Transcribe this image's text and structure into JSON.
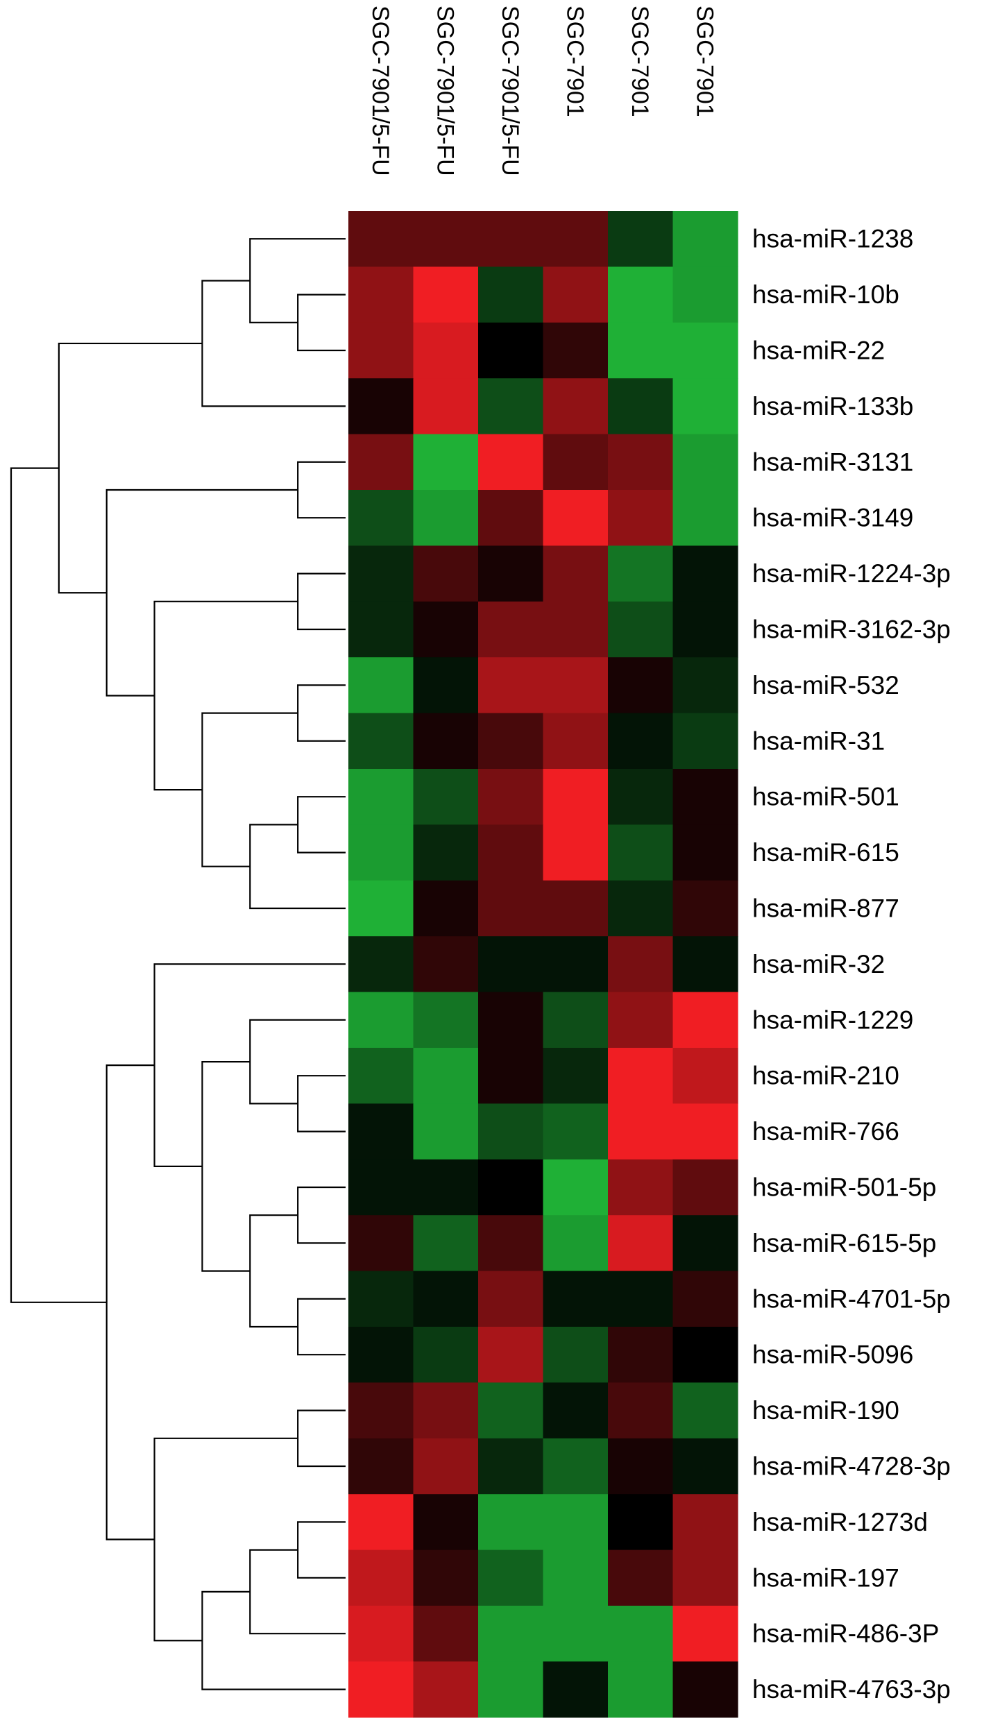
{
  "chart_data": {
    "type": "heatmap",
    "title": "",
    "columns": [
      "SGC-7901/5-FU",
      "SGC-7901/5-FU",
      "SGC-7901/5-FU",
      "SGC-7901",
      "SGC-7901",
      "SGC-7901"
    ],
    "rows": [
      "hsa-miR-1238",
      "hsa-miR-10b",
      "hsa-miR-22",
      "hsa-miR-133b",
      "hsa-miR-3131",
      "hsa-miR-3149",
      "hsa-miR-1224-3p",
      "hsa-miR-3162-3p",
      "hsa-miR-532",
      "hsa-miR-31",
      "hsa-miR-501",
      "hsa-miR-615",
      "hsa-miR-877",
      "hsa-miR-32",
      "hsa-miR-1229",
      "hsa-miR-210",
      "hsa-miR-766",
      "hsa-miR-501-5p",
      "hsa-miR-615-5p",
      "hsa-miR-4701-5p",
      "hsa-miR-5096",
      "hsa-miR-190",
      "hsa-miR-4728-3p",
      "hsa-miR-1273d",
      "hsa-miR-197",
      "hsa-miR-486-3P",
      "hsa-miR-4763-3p"
    ],
    "color_scale": {
      "low": "#22c33c",
      "mid": "#000000",
      "high": "#f01e23"
    },
    "values": [
      [
        0.4,
        0.4,
        0.4,
        0.4,
        -0.3,
        -0.8
      ],
      [
        0.6,
        1.0,
        -0.3,
        0.6,
        -0.9,
        -0.8
      ],
      [
        0.6,
        0.9,
        0.0,
        0.2,
        -0.9,
        -0.9
      ],
      [
        0.1,
        0.9,
        -0.4,
        0.6,
        -0.3,
        -0.9
      ],
      [
        0.5,
        -0.9,
        1.0,
        0.4,
        0.5,
        -0.8
      ],
      [
        -0.4,
        -0.8,
        0.4,
        1.0,
        0.6,
        -0.8
      ],
      [
        -0.2,
        0.3,
        0.1,
        0.5,
        -0.6,
        -0.1
      ],
      [
        -0.2,
        0.1,
        0.5,
        0.5,
        -0.4,
        -0.1
      ],
      [
        -0.8,
        -0.1,
        0.7,
        0.7,
        0.1,
        -0.2
      ],
      [
        -0.4,
        0.1,
        0.3,
        0.6,
        -0.1,
        -0.3
      ],
      [
        -0.8,
        -0.4,
        0.5,
        1.0,
        -0.2,
        0.1
      ],
      [
        -0.8,
        -0.2,
        0.4,
        1.0,
        -0.4,
        0.1
      ],
      [
        -0.9,
        0.1,
        0.4,
        0.4,
        -0.2,
        0.2
      ],
      [
        -0.2,
        0.2,
        -0.1,
        -0.1,
        0.5,
        -0.1
      ],
      [
        -0.8,
        -0.6,
        0.1,
        -0.4,
        0.6,
        1.0
      ],
      [
        -0.5,
        -0.8,
        0.1,
        -0.2,
        1.0,
        0.8
      ],
      [
        -0.1,
        -0.8,
        -0.4,
        -0.5,
        1.0,
        1.0
      ],
      [
        -0.1,
        -0.1,
        0.0,
        -0.9,
        0.6,
        0.4
      ],
      [
        0.2,
        -0.5,
        0.3,
        -0.8,
        0.9,
        -0.1
      ],
      [
        -0.2,
        -0.1,
        0.5,
        -0.1,
        -0.1,
        0.2
      ],
      [
        -0.1,
        -0.3,
        0.7,
        -0.4,
        0.2,
        0.0
      ],
      [
        0.3,
        0.5,
        -0.5,
        -0.1,
        0.3,
        -0.5
      ],
      [
        0.2,
        0.6,
        -0.2,
        -0.5,
        0.1,
        -0.1
      ],
      [
        1.0,
        0.1,
        -0.8,
        -0.8,
        0.0,
        0.6
      ],
      [
        0.8,
        0.2,
        -0.5,
        -0.8,
        0.3,
        0.6
      ],
      [
        0.9,
        0.4,
        -0.8,
        -0.8,
        -0.8,
        1.0
      ],
      [
        1.0,
        0.7,
        -0.8,
        -0.1,
        -0.8,
        0.1
      ]
    ],
    "row_dendrogram": [
      [
        1,
        2
      ],
      [
        0,
        27
      ],
      [
        3,
        28
      ],
      [
        4,
        5
      ],
      [
        6,
        7
      ],
      [
        8,
        9
      ],
      [
        10,
        11
      ],
      [
        33,
        12
      ],
      [
        32,
        34
      ],
      [
        31,
        35
      ],
      [
        30,
        36
      ],
      [
        29,
        37
      ],
      [
        15,
        16
      ],
      [
        14,
        39
      ],
      [
        17,
        18
      ],
      [
        19,
        20
      ],
      [
        41,
        42
      ],
      [
        40,
        43
      ],
      [
        13,
        44
      ],
      [
        21,
        22
      ],
      [
        23,
        24
      ],
      [
        47,
        25
      ],
      [
        48,
        26
      ],
      [
        46,
        49
      ],
      [
        45,
        50
      ],
      [
        38,
        51
      ]
    ],
    "legend": "none",
    "grid": false
  }
}
